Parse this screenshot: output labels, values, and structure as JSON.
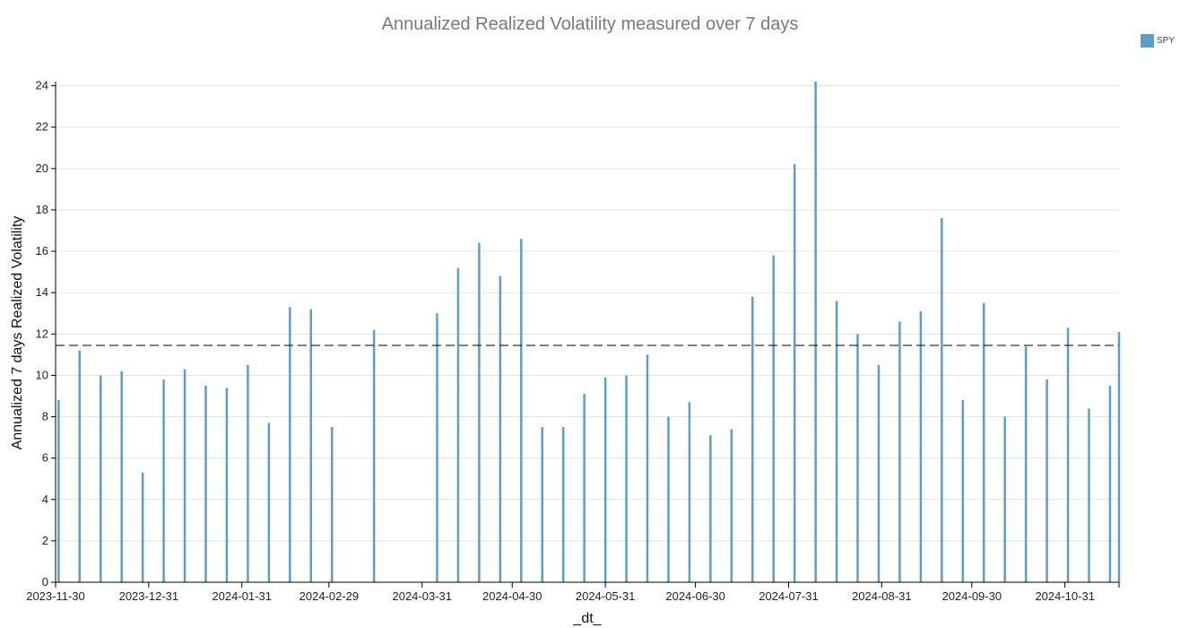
{
  "chart_data": {
    "type": "bar",
    "title": "Annualized Realized Volatility measured over 7 days",
    "xlabel": "_dt_",
    "ylabel": "Annualized 7 days Realized Volatility",
    "ylim": [
      0,
      24.2
    ],
    "yticks": [
      0,
      2,
      4,
      6,
      8,
      10,
      12,
      14,
      16,
      18,
      20,
      22,
      24
    ],
    "xrange": [
      "2023-11-30",
      "2024-11-18"
    ],
    "xticks": [
      "2023-11-30",
      "2023-12-31",
      "2024-01-31",
      "2024-02-29",
      "2024-03-31",
      "2024-04-30",
      "2024-05-31",
      "2024-06-30",
      "2024-07-31",
      "2024-08-31",
      "2024-09-30",
      "2024-10-31"
    ],
    "grid": true,
    "legend_position": "top-right",
    "reference_line": {
      "y": 11.45,
      "style": "dashed",
      "color": "#000000"
    },
    "series": [
      {
        "name": "SPY",
        "color": "#5b9ec9",
        "points": [
          [
            "2023-12-01",
            8.8
          ],
          [
            "2023-12-08",
            11.2
          ],
          [
            "2023-12-15",
            10.0
          ],
          [
            "2023-12-22",
            10.2
          ],
          [
            "2023-12-29",
            5.3
          ],
          [
            "2024-01-05",
            9.8
          ],
          [
            "2024-01-12",
            10.3
          ],
          [
            "2024-01-19",
            9.5
          ],
          [
            "2024-01-26",
            9.4
          ],
          [
            "2024-02-02",
            10.5
          ],
          [
            "2024-02-09",
            7.7
          ],
          [
            "2024-02-16",
            13.3
          ],
          [
            "2024-02-23",
            13.2
          ],
          [
            "2024-03-01",
            7.5
          ],
          [
            "2024-03-15",
            12.2
          ],
          [
            "2024-04-05",
            13.0
          ],
          [
            "2024-04-12",
            15.2
          ],
          [
            "2024-04-19",
            16.4
          ],
          [
            "2024-04-26",
            14.8
          ],
          [
            "2024-05-03",
            16.6
          ],
          [
            "2024-05-10",
            7.5
          ],
          [
            "2024-05-17",
            7.5
          ],
          [
            "2024-05-24",
            9.1
          ],
          [
            "2024-05-31",
            9.9
          ],
          [
            "2024-06-07",
            10.0
          ],
          [
            "2024-06-14",
            11.0
          ],
          [
            "2024-06-21",
            8.0
          ],
          [
            "2024-06-28",
            8.7
          ],
          [
            "2024-07-05",
            7.1
          ],
          [
            "2024-07-12",
            7.4
          ],
          [
            "2024-07-19",
            13.8
          ],
          [
            "2024-07-26",
            15.8
          ],
          [
            "2024-08-02",
            20.2
          ],
          [
            "2024-08-09",
            24.2
          ],
          [
            "2024-08-16",
            13.6
          ],
          [
            "2024-08-23",
            12.0
          ],
          [
            "2024-08-30",
            10.5
          ],
          [
            "2024-09-06",
            12.6
          ],
          [
            "2024-09-13",
            13.1
          ],
          [
            "2024-09-20",
            17.6
          ],
          [
            "2024-09-27",
            8.8
          ],
          [
            "2024-10-04",
            13.5
          ],
          [
            "2024-10-11",
            8.0
          ],
          [
            "2024-10-18",
            11.4
          ],
          [
            "2024-10-25",
            9.8
          ],
          [
            "2024-11-01",
            12.3
          ],
          [
            "2024-11-08",
            8.4
          ],
          [
            "2024-11-15",
            9.5
          ],
          [
            "2024-11-18",
            12.1
          ]
        ]
      }
    ]
  }
}
